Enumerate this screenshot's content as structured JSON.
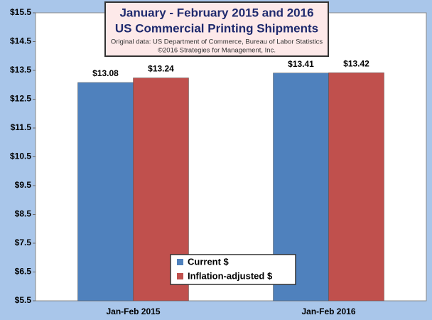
{
  "chart_data": {
    "type": "bar",
    "title": "January - February 2015 and 2016",
    "subtitle": "US Commercial Printing Shipments",
    "source_lines": [
      "Original data: US Department of Commerce, Bureau of Labor Statistics",
      "©2016 Strategies for Management, Inc."
    ],
    "categories": [
      "Jan-Feb 2015",
      "Jan-Feb 2016"
    ],
    "series": [
      {
        "name": "Current $",
        "color": "#4f81bd",
        "values": [
          13.08,
          13.41
        ],
        "value_labels": [
          "$13.08",
          "$13.41"
        ]
      },
      {
        "name": "Inflation-adjusted $",
        "color": "#c0504d",
        "values": [
          13.24,
          13.42
        ],
        "value_labels": [
          "$13.24",
          "$13.42"
        ]
      }
    ],
    "ylim": [
      5.5,
      15.5
    ],
    "yticks": [
      {
        "value": 5.5,
        "label": "$5.5"
      },
      {
        "value": 6.5,
        "label": "$6.5"
      },
      {
        "value": 7.5,
        "label": "$7.5"
      },
      {
        "value": 8.5,
        "label": "$8.5"
      },
      {
        "value": 9.5,
        "label": "$9.5"
      },
      {
        "value": 10.5,
        "label": "$10.5"
      },
      {
        "value": 11.5,
        "label": "$11.5"
      },
      {
        "value": 12.5,
        "label": "$12.5"
      },
      {
        "value": 13.5,
        "label": "$13.5"
      },
      {
        "value": 14.5,
        "label": "$14.5"
      },
      {
        "value": 15.5,
        "label": "$15.5"
      }
    ],
    "grid": false
  }
}
